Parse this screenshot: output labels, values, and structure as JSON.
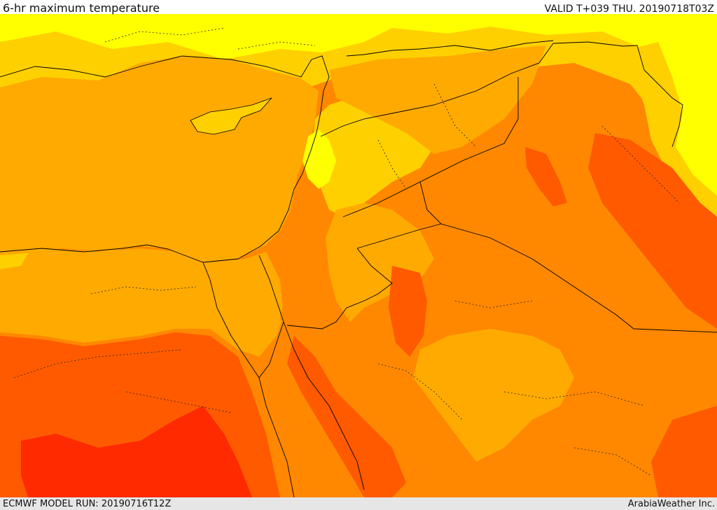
{
  "header": {
    "title": "6-hr maximum temperature",
    "valid": "VALID T+039 THU. 20190718T03Z"
  },
  "footer": {
    "model_run": "ECMWF MODEL RUN: 20190716T12Z",
    "credit": "ArabiaWeather Inc."
  },
  "palette": {
    "band_20_25": "#ffff00",
    "band_25_30": "#ffd000",
    "band_30_35": "#ffaa00",
    "band_35_40": "#ff8800",
    "band_40_45": "#ff5a00",
    "band_45_plus": "#ff2a00",
    "cool_spots": "#a8ff60",
    "coastline": "#000000",
    "border": "#000000"
  }
}
